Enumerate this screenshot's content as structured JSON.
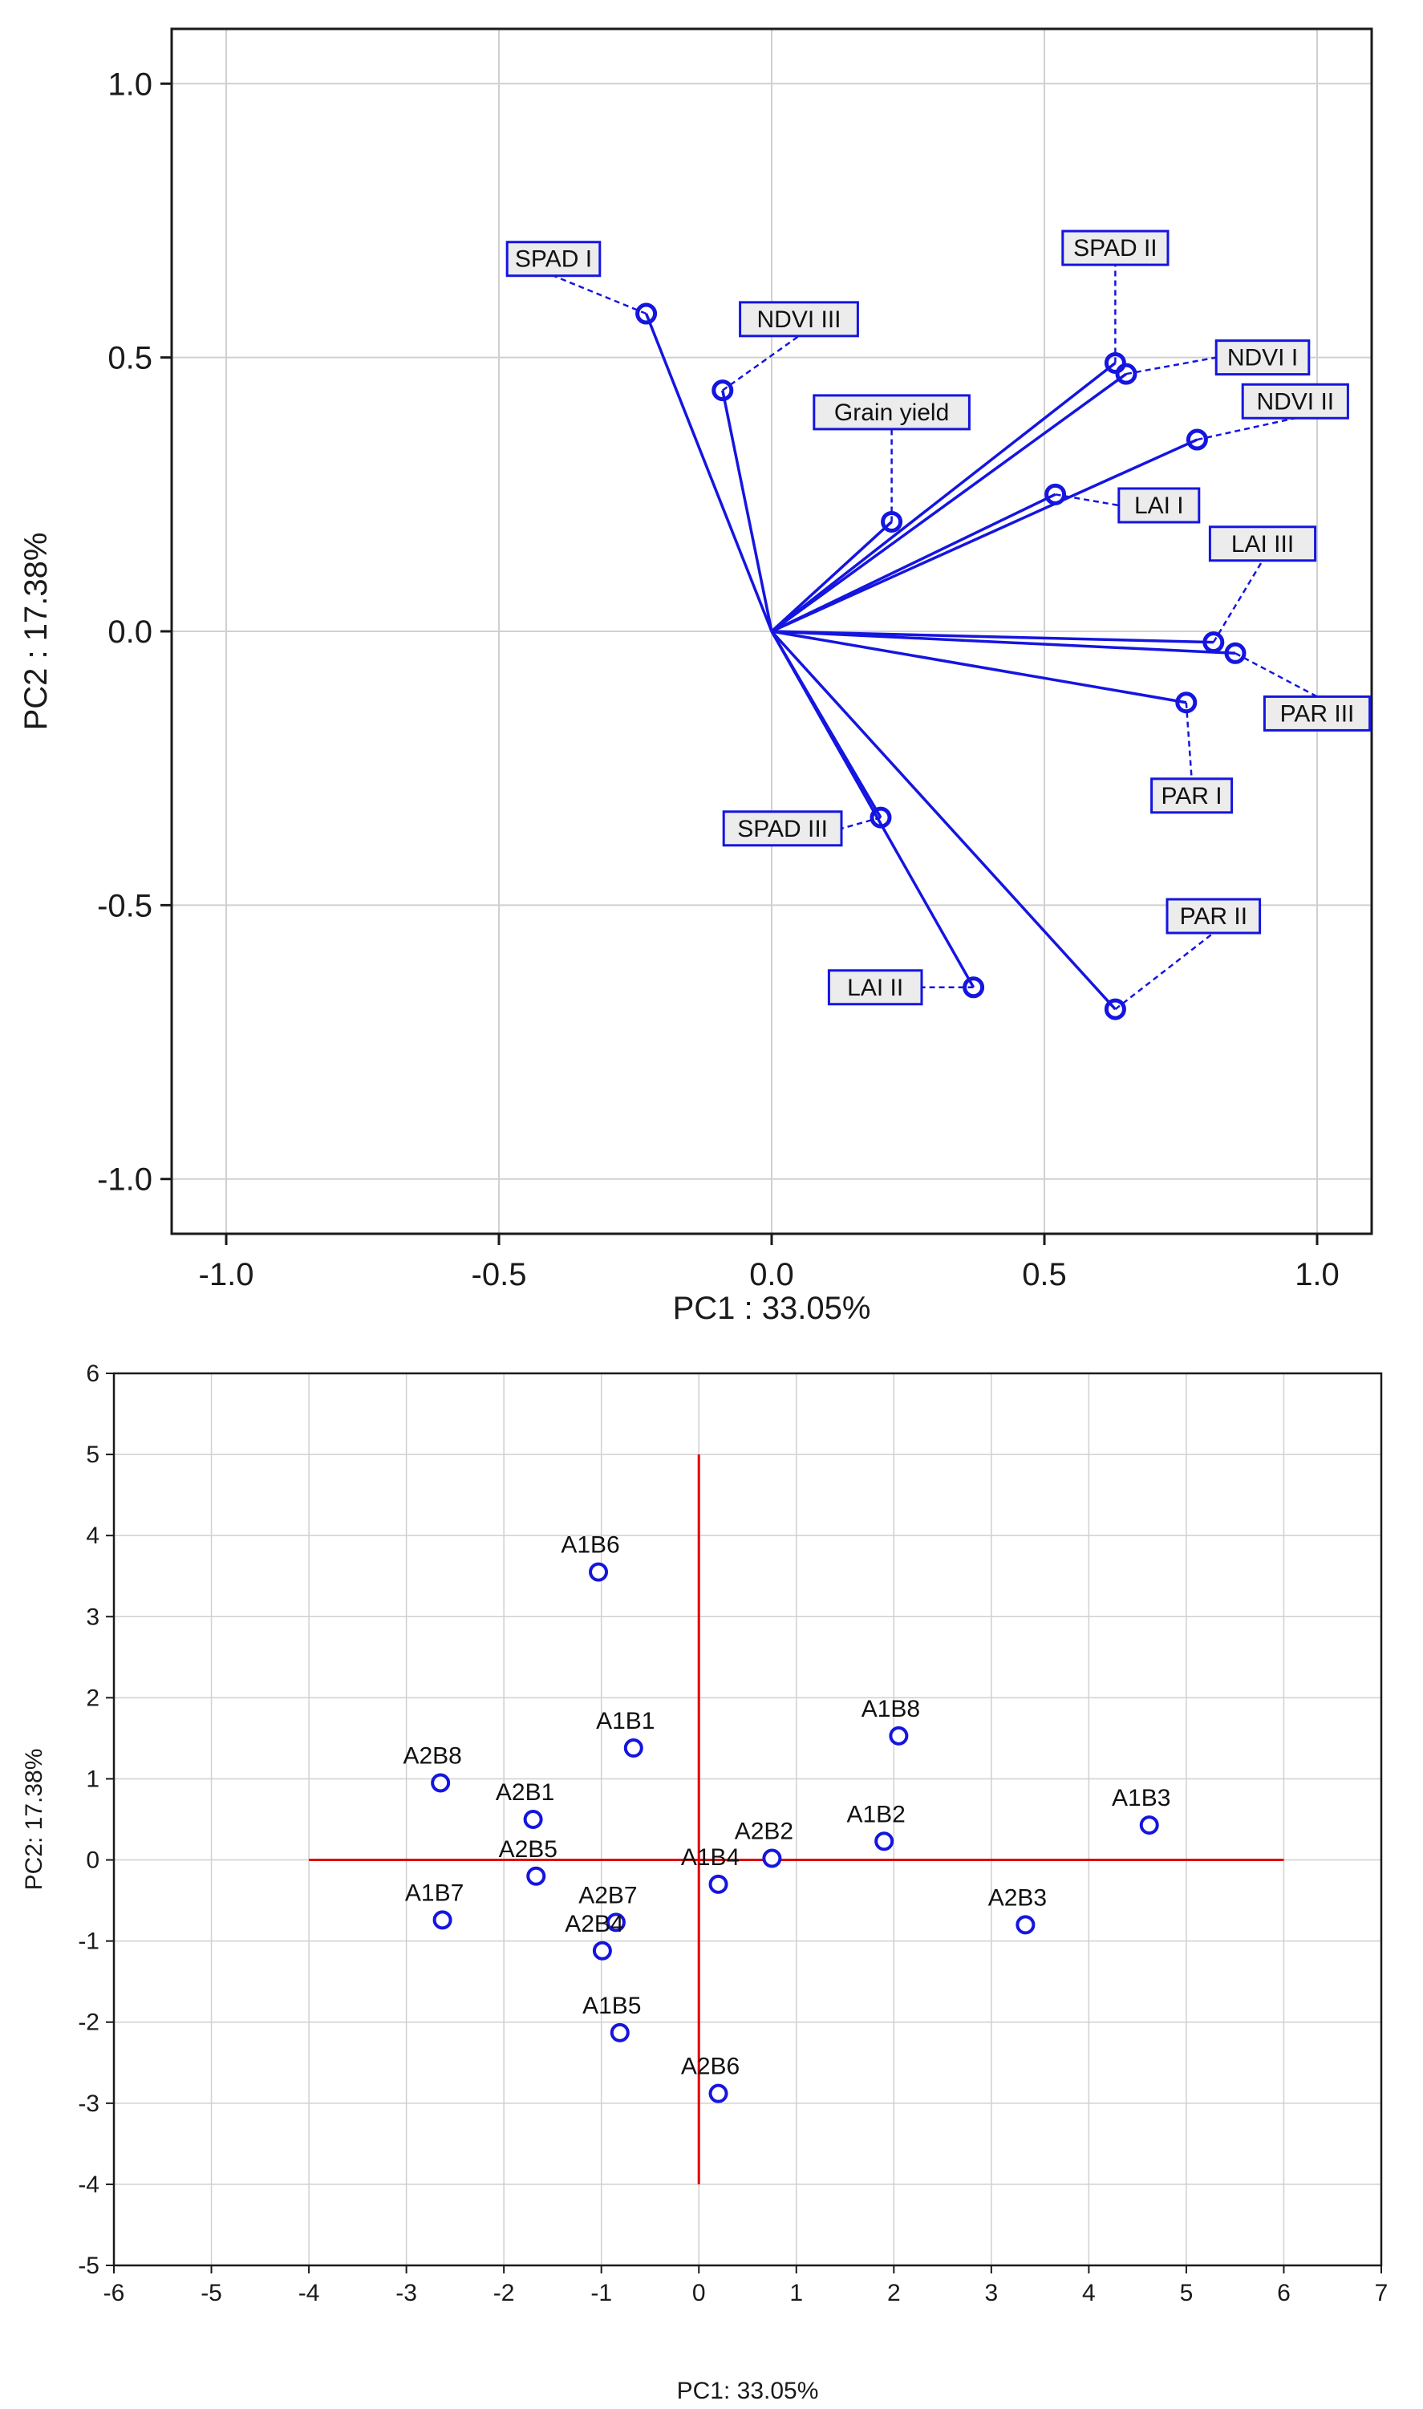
{
  "chart_data": [
    {
      "type": "scatter",
      "subtype": "loading-plot",
      "xlabel": "PC1 : 33.05%",
      "ylabel": "PC2 : 17.38%",
      "xlim": [
        -1.1,
        1.1
      ],
      "ylim": [
        -1.1,
        1.1
      ],
      "xticks": [
        -1.0,
        -0.5,
        0.0,
        0.5,
        1.0
      ],
      "yticks": [
        -1.0,
        -0.5,
        0.0,
        0.5,
        1.0
      ],
      "xtick_labels": [
        "-1.0",
        "-0.5",
        "0.0",
        "0.5",
        "1.0"
      ],
      "ytick_labels": [
        "-1.0",
        "-0.5",
        "0.0",
        "0.5",
        "1.0"
      ],
      "grid": true,
      "colors": {
        "vector": "#1515e0",
        "grid": "#d0d0d0",
        "label_border": "#1515e0",
        "label_fill": "#ececec"
      },
      "vectors": [
        {
          "name": "SPAD I",
          "x": -0.23,
          "y": 0.58,
          "label_x": -0.4,
          "label_y": 0.68
        },
        {
          "name": "NDVI III",
          "x": -0.09,
          "y": 0.44,
          "label_x": 0.05,
          "label_y": 0.57
        },
        {
          "name": "Grain yield",
          "x": 0.22,
          "y": 0.2,
          "label_x": 0.22,
          "label_y": 0.4
        },
        {
          "name": "SPAD II",
          "x": 0.63,
          "y": 0.49,
          "label_x": 0.63,
          "label_y": 0.7
        },
        {
          "name": "NDVI I",
          "x": 0.65,
          "y": 0.47,
          "label_x": 0.9,
          "label_y": 0.5
        },
        {
          "name": "NDVI II",
          "x": 0.78,
          "y": 0.35,
          "label_x": 0.96,
          "label_y": 0.42
        },
        {
          "name": "LAI I",
          "x": 0.52,
          "y": 0.25,
          "label_x": 0.71,
          "label_y": 0.23
        },
        {
          "name": "LAI III",
          "x": 0.81,
          "y": -0.02,
          "label_x": 0.9,
          "label_y": 0.16
        },
        {
          "name": "PAR III",
          "x": 0.85,
          "y": -0.04,
          "label_x": 1.0,
          "label_y": -0.15
        },
        {
          "name": "PAR I",
          "x": 0.76,
          "y": -0.13,
          "label_x": 0.77,
          "label_y": -0.3
        },
        {
          "name": "SPAD III",
          "x": 0.2,
          "y": -0.34,
          "label_x": 0.02,
          "label_y": -0.36
        },
        {
          "name": "PAR II",
          "x": 0.63,
          "y": -0.69,
          "label_x": 0.81,
          "label_y": -0.52
        },
        {
          "name": "LAI II",
          "x": 0.37,
          "y": -0.65,
          "label_x": 0.19,
          "label_y": -0.65
        }
      ]
    },
    {
      "type": "scatter",
      "subtype": "score-plot",
      "xlabel": "PC1: 33.05%",
      "ylabel": "PC2: 17.38%",
      "xlim": [
        -6,
        7
      ],
      "ylim": [
        -5,
        6
      ],
      "xticks": [
        -6,
        -5,
        -4,
        -3,
        -2,
        -1,
        0,
        1,
        2,
        3,
        4,
        5,
        6,
        7
      ],
      "yticks": [
        -5,
        -4,
        -3,
        -2,
        -1,
        0,
        1,
        2,
        3,
        4,
        5,
        6
      ],
      "xtick_labels": [
        "-6",
        "-5",
        "-4",
        "-3",
        "-2",
        "-1",
        "0",
        "1",
        "2",
        "3",
        "4",
        "5",
        "6",
        "7"
      ],
      "ytick_labels": [
        "-5",
        "-4",
        "-3",
        "-2",
        "-1",
        "0",
        "1",
        "2",
        "3",
        "4",
        "5",
        "6"
      ],
      "grid": true,
      "reference_axes": {
        "horizontal": {
          "y": 0,
          "x_from": -4,
          "x_to": 6
        },
        "vertical": {
          "x": 0,
          "y_from": -4,
          "y_to": 5
        }
      },
      "colors": {
        "point": "#1515e0",
        "axis_lines": "#e00000",
        "grid": "#d0d0d0"
      },
      "points": [
        {
          "name": "A1B6",
          "x": -1.03,
          "y": 3.55
        },
        {
          "name": "A1B1",
          "x": -0.67,
          "y": 1.38
        },
        {
          "name": "A2B8",
          "x": -2.65,
          "y": 0.95
        },
        {
          "name": "A2B1",
          "x": -1.7,
          "y": 0.5
        },
        {
          "name": "A2B5",
          "x": -1.67,
          "y": -0.2
        },
        {
          "name": "A1B7",
          "x": -2.63,
          "y": -0.74
        },
        {
          "name": "A2B7",
          "x": -0.85,
          "y": -0.77
        },
        {
          "name": "A2B4",
          "x": -0.99,
          "y": -1.12
        },
        {
          "name": "A1B5",
          "x": -0.81,
          "y": -2.13
        },
        {
          "name": "A2B6",
          "x": 0.2,
          "y": -2.88
        },
        {
          "name": "A1B4",
          "x": 0.2,
          "y": -0.3
        },
        {
          "name": "A2B2",
          "x": 0.75,
          "y": 0.02
        },
        {
          "name": "A1B2",
          "x": 1.9,
          "y": 0.23
        },
        {
          "name": "A1B8",
          "x": 2.05,
          "y": 1.53
        },
        {
          "name": "A2B3",
          "x": 3.35,
          "y": -0.8
        },
        {
          "name": "A1B3",
          "x": 4.62,
          "y": 0.43
        }
      ]
    }
  ]
}
